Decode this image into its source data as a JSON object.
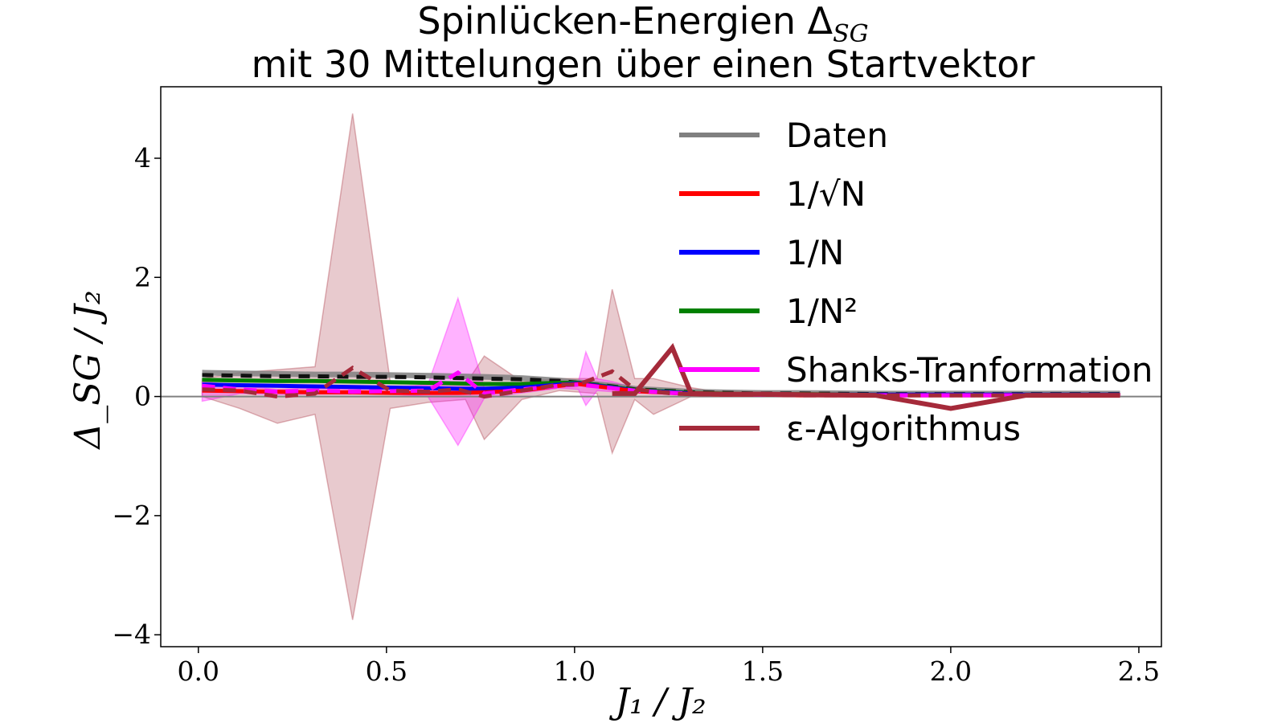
{
  "chart_data": {
    "type": "line",
    "title_line1": "Spinlücken-Energien Δ",
    "title_line1_sub": "SG",
    "title_line2": "mit 30 Mittelungen über einen Startvektor",
    "xlabel": "J₁ / J₂",
    "ylabel": "Δ_SG / J₂",
    "xlim": [
      -0.1,
      2.56
    ],
    "ylim": [
      -4.2,
      5.2
    ],
    "xticks": [
      0.0,
      0.5,
      1.0,
      1.5,
      2.0,
      2.5
    ],
    "xtick_labels": [
      "0.0",
      "0.5",
      "1.0",
      "1.5",
      "2.0",
      "2.5"
    ],
    "yticks": [
      -4,
      -2,
      0,
      2,
      4
    ],
    "ytick_labels": [
      "−4",
      "−2",
      "0",
      "2",
      "4"
    ],
    "zero_line": true,
    "grid": false,
    "legend_position": "upper-right",
    "legend": [
      {
        "label": "Daten",
        "color": "#808080"
      },
      {
        "label": "1/√N",
        "color": "#ff0000"
      },
      {
        "label": "1/N",
        "color": "#0000ff"
      },
      {
        "label": "1/N²",
        "color": "#008000"
      },
      {
        "label": "Shanks-Tranformation",
        "color": "#ff00ff"
      },
      {
        "label": "ε-Algorithmus",
        "color": "#a52a3a"
      }
    ],
    "x": [
      0.01,
      0.11,
      0.21,
      0.31,
      0.41,
      0.51,
      0.61,
      0.69,
      0.76,
      0.86,
      0.96,
      1.01,
      1.1,
      1.16,
      1.26,
      1.31,
      1.4,
      1.5,
      1.6,
      1.8,
      2.0,
      2.2,
      2.45
    ],
    "series": [
      {
        "name": "Daten",
        "color": "#808080",
        "width": 7,
        "dash": "none",
        "values": [
          0.4,
          0.39,
          0.38,
          0.37,
          0.37,
          0.36,
          0.35,
          0.34,
          0.33,
          0.31,
          0.27,
          0.24,
          0.18,
          0.13,
          0.1,
          0.08,
          0.07,
          0.06,
          0.06,
          0.05,
          0.05,
          0.05,
          0.05
        ]
      },
      {
        "name": "Daten",
        "color": "#111111",
        "width": 5,
        "dash": "14 10",
        "values": [
          0.36,
          0.35,
          0.34,
          0.34,
          0.33,
          0.33,
          0.32,
          0.31,
          0.3,
          0.29,
          0.26,
          0.23,
          0.17,
          0.12,
          0.09,
          0.07,
          0.06,
          0.05,
          0.05,
          0.04,
          0.04,
          0.04,
          0.04
        ]
      },
      {
        "name": "1/N²",
        "color": "#008000",
        "width": 5,
        "dash": "none",
        "values": [
          0.28,
          0.27,
          0.26,
          0.26,
          0.25,
          0.24,
          0.23,
          0.22,
          0.21,
          0.21,
          0.23,
          0.23,
          0.16,
          0.11,
          0.08,
          0.06,
          0.05,
          0.04,
          0.04,
          0.03,
          0.03,
          0.03,
          0.03
        ]
      },
      {
        "name": "1/N",
        "color": "#0000ff",
        "width": 5,
        "dash": "none",
        "values": [
          0.2,
          0.19,
          0.18,
          0.17,
          0.16,
          0.15,
          0.14,
          0.13,
          0.13,
          0.15,
          0.2,
          0.22,
          0.15,
          0.1,
          0.07,
          0.05,
          0.04,
          0.03,
          0.03,
          0.03,
          0.03,
          0.03,
          0.03
        ]
      },
      {
        "name": "1/√N",
        "color": "#ff0000",
        "width": 5,
        "dash": "none",
        "values": [
          0.1,
          0.09,
          0.08,
          0.07,
          0.07,
          0.06,
          0.06,
          0.06,
          0.07,
          0.1,
          0.18,
          0.21,
          0.14,
          0.09,
          0.06,
          0.04,
          0.03,
          0.03,
          0.02,
          0.02,
          0.02,
          0.02,
          0.02
        ]
      },
      {
        "name": "Shanks-Tranformation",
        "color": "#ff00ff",
        "width": 5,
        "dash": "16 10",
        "values": [
          0.18,
          0.12,
          0.08,
          0.1,
          0.08,
          0.09,
          0.1,
          0.4,
          0.05,
          0.12,
          0.18,
          0.2,
          0.14,
          0.1,
          0.06,
          0.05,
          0.04,
          0.03,
          0.03,
          0.02,
          0.02,
          0.02,
          0.02
        ]
      },
      {
        "name": "ε-Algorithmus",
        "color": "#a52a3a",
        "width": 5,
        "dash": "16 10",
        "values": [
          0.12,
          0.1,
          0.0,
          0.05,
          0.48,
          0.1,
          0.08,
          0.12,
          0.0,
          0.1,
          0.2,
          0.2,
          0.42,
          0.12,
          0.05,
          0.04,
          0.03,
          0.03,
          0.02,
          0.02,
          0.02,
          0.02,
          0.02
        ]
      },
      {
        "name": "ε-Algorithmus",
        "color": "#a52a3a",
        "width": 6,
        "dash": "none",
        "values": [
          null,
          null,
          null,
          null,
          null,
          null,
          null,
          null,
          null,
          null,
          null,
          null,
          0.05,
          0.05,
          0.82,
          0.05,
          0.04,
          0.04,
          0.03,
          0.02,
          -0.2,
          0.02,
          0.02
        ]
      }
    ],
    "bands": [
      {
        "name": "ε-Algorithmus",
        "color": "#a52a3a",
        "x": [
          0.01,
          0.11,
          0.21,
          0.31,
          0.41,
          0.51,
          0.61,
          0.71,
          0.76,
          0.86,
          0.96,
          1.06,
          1.1,
          1.16,
          1.21,
          1.31,
          1.4,
          1.6,
          2.0,
          2.45
        ],
        "upper": [
          0.3,
          0.4,
          0.45,
          0.5,
          4.75,
          0.25,
          0.2,
          0.2,
          0.68,
          0.25,
          0.3,
          0.3,
          1.8,
          0.3,
          0.3,
          0.15,
          0.06,
          0.05,
          0.05,
          0.05
        ],
        "lower": [
          0.0,
          -0.2,
          -0.45,
          -0.3,
          -3.75,
          -0.2,
          -0.1,
          -0.05,
          -0.72,
          -0.05,
          0.1,
          0.05,
          -0.95,
          -0.05,
          -0.3,
          0.0,
          0.0,
          0.0,
          0.0,
          0.0
        ]
      },
      {
        "name": "Shanks-Tranformation",
        "color": "#ff00ff",
        "x": [
          0.01,
          0.11,
          0.21,
          0.31,
          0.41,
          0.51,
          0.61,
          0.69,
          0.76,
          0.86,
          0.96,
          1.01,
          1.03,
          1.06,
          1.1,
          1.16,
          1.26,
          1.4,
          2.45
        ],
        "upper": [
          0.25,
          0.18,
          0.12,
          0.15,
          0.12,
          0.15,
          0.2,
          1.65,
          0.15,
          0.18,
          0.22,
          0.25,
          0.75,
          0.3,
          0.25,
          0.15,
          0.08,
          0.05,
          0.04
        ],
        "lower": [
          -0.08,
          0.05,
          0.03,
          0.04,
          0.04,
          0.04,
          0.0,
          -0.82,
          -0.03,
          0.06,
          0.14,
          0.12,
          -0.15,
          0.1,
          0.08,
          0.06,
          0.03,
          0.02,
          0.01
        ]
      }
    ]
  }
}
